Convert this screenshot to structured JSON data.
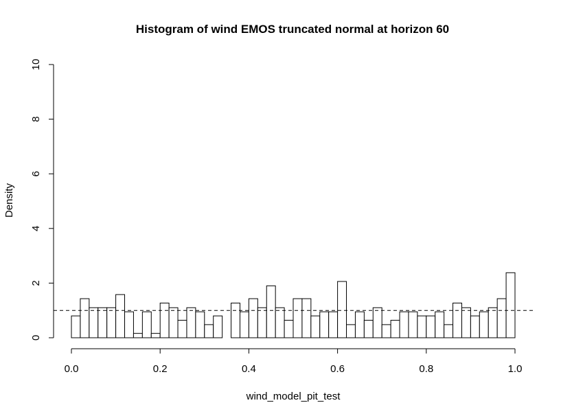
{
  "chart_data": {
    "type": "bar",
    "title": "Histogram of wind EMOS truncated normal at horizon 60",
    "xlabel": "wind_model_pit_test",
    "ylabel": "Density",
    "xlim": [
      0.0,
      1.0
    ],
    "ylim": [
      0,
      10
    ],
    "x_ticks": [
      "0.0",
      "0.2",
      "0.4",
      "0.6",
      "0.8",
      "1.0"
    ],
    "y_ticks": [
      "0",
      "2",
      "4",
      "6",
      "8",
      "10"
    ],
    "bin_width": 0.02,
    "bin_start": 0.0,
    "values": [
      0.8,
      1.43,
      1.1,
      1.1,
      1.1,
      1.58,
      0.95,
      0.16,
      0.95,
      0.16,
      1.27,
      1.1,
      0.64,
      1.1,
      0.95,
      0.48,
      0.8,
      0.0,
      1.27,
      0.95,
      1.43,
      1.1,
      1.9,
      1.1,
      0.64,
      1.43,
      1.43,
      0.8,
      0.95,
      0.95,
      2.06,
      0.48,
      0.95,
      0.64,
      1.1,
      0.48,
      0.64,
      0.95,
      0.95,
      0.8,
      0.8,
      0.95,
      0.48,
      1.27,
      1.1,
      0.8,
      0.95,
      1.1,
      1.43,
      2.38
    ],
    "reference_line": {
      "y": 1.0,
      "style": "dashed"
    },
    "grid": false
  }
}
